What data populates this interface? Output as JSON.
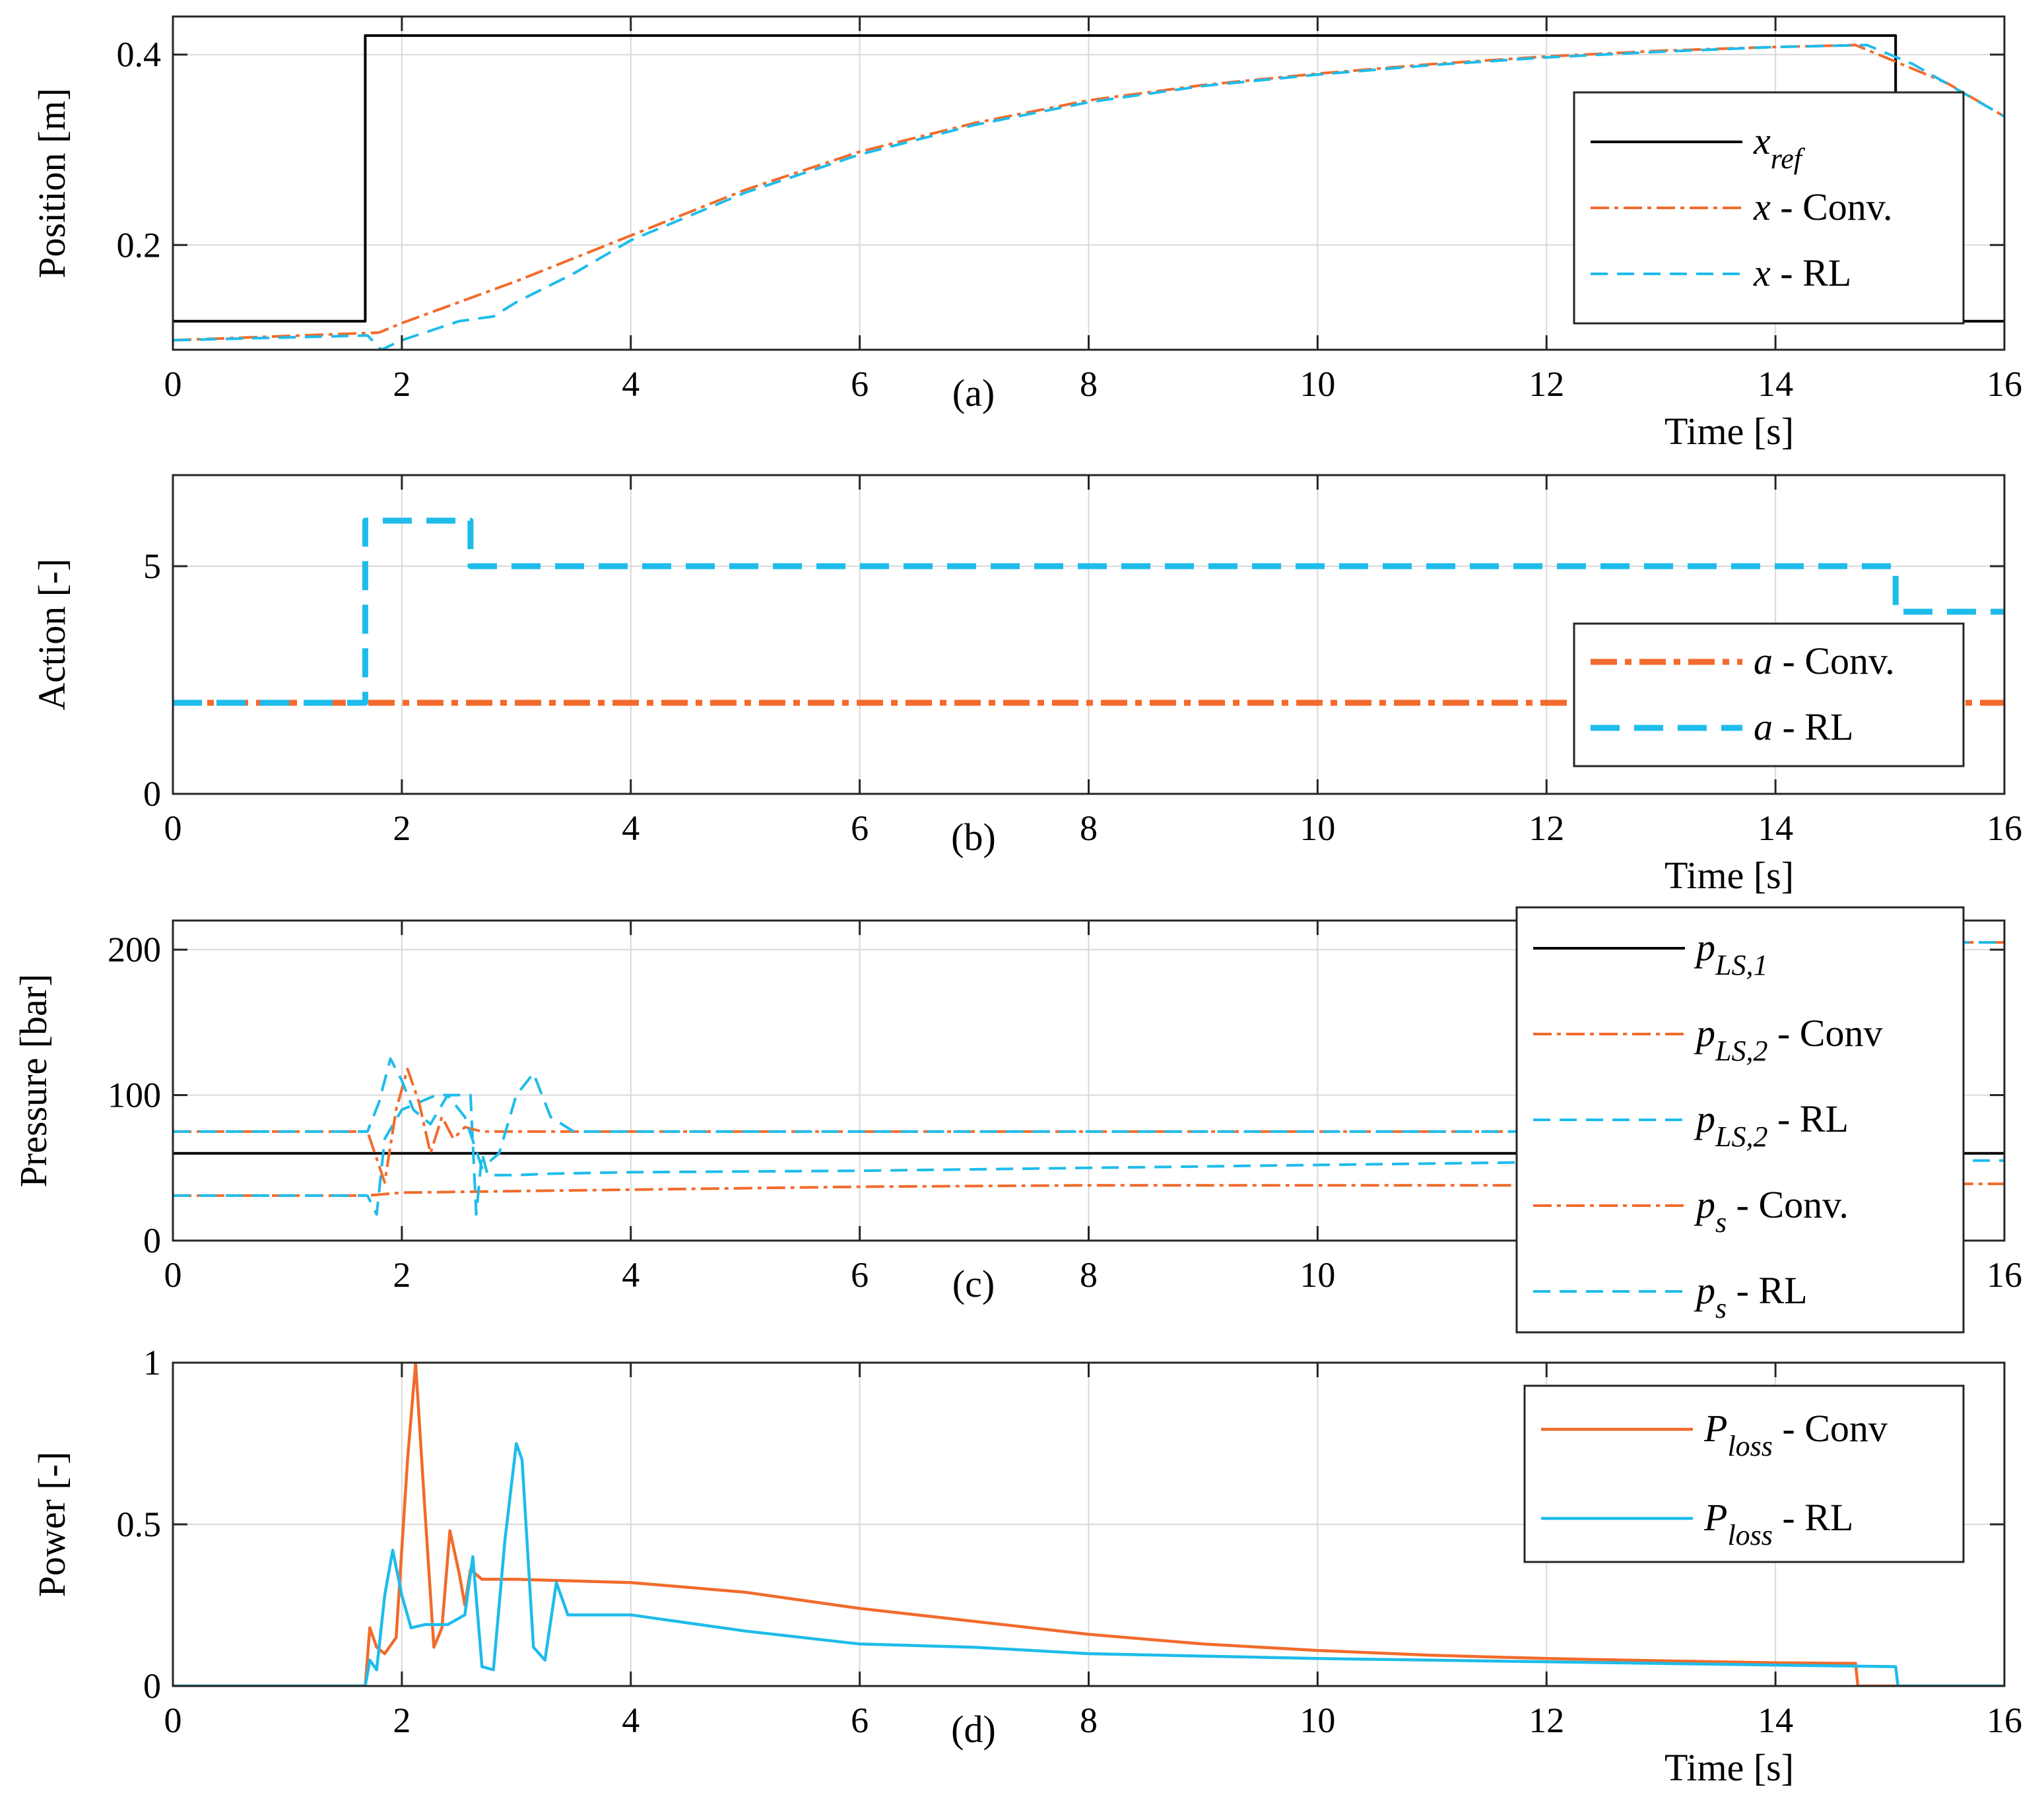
{
  "colors": {
    "conv": "#F26B2C",
    "rl": "#1EBCEB",
    "ref": "#000000",
    "grid": "#d9d9d9"
  },
  "chart_data": [
    {
      "type": "line",
      "panel": "(a)",
      "title": "",
      "xlabel": "Time [s]",
      "ylabel": "Position [m]",
      "xlim": [
        0,
        16
      ],
      "ylim": [
        0.09,
        0.44
      ],
      "xticks": [
        0,
        2,
        4,
        6,
        8,
        10,
        12,
        14,
        16
      ],
      "yticks": [
        0.2,
        0.4
      ],
      "ytick_labels": [
        "0.2",
        "0.4"
      ],
      "legend_loc": "right",
      "series": [
        {
          "name": "x_ref",
          "label_main": "x",
          "label_sub": "ref",
          "label_suffix": "",
          "style": "ref",
          "x": [
            0,
            1.68,
            1.68,
            15.05,
            15.05,
            16
          ],
          "y": [
            0.12,
            0.12,
            0.42,
            0.42,
            0.12,
            0.12
          ]
        },
        {
          "name": "x - Conv.",
          "label_main": "x",
          "label_sub": "",
          "label_suffix": " - Conv.",
          "style": "conv",
          "x": [
            0,
            1.8,
            2.0,
            2.5,
            3,
            4,
            5,
            6,
            7,
            8,
            9,
            10,
            11,
            12,
            13,
            14,
            14.7,
            15.0,
            15.5,
            16
          ],
          "y": [
            0.1,
            0.108,
            0.118,
            0.14,
            0.162,
            0.21,
            0.258,
            0.298,
            0.328,
            0.352,
            0.368,
            0.38,
            0.39,
            0.398,
            0.404,
            0.408,
            0.41,
            0.395,
            0.37,
            0.335
          ]
        },
        {
          "name": "x - RL",
          "label_main": "x",
          "label_sub": "",
          "label_suffix": " - RL",
          "style": "rl",
          "x": [
            0,
            1.7,
            1.82,
            2.0,
            2.5,
            2.8,
            3.0,
            3.5,
            4,
            5,
            6,
            7,
            8,
            9,
            10,
            11,
            12,
            13,
            14,
            14.8,
            15.2,
            16
          ],
          "y": [
            0.1,
            0.105,
            0.09,
            0.1,
            0.12,
            0.125,
            0.14,
            0.17,
            0.205,
            0.255,
            0.295,
            0.326,
            0.35,
            0.367,
            0.379,
            0.389,
            0.397,
            0.403,
            0.408,
            0.41,
            0.39,
            0.335
          ]
        }
      ]
    },
    {
      "type": "line",
      "panel": "(b)",
      "title": "",
      "xlabel": "Time [s]",
      "ylabel": "Action [-]",
      "xlim": [
        0,
        16
      ],
      "ylim": [
        0,
        7
      ],
      "xticks": [
        0,
        2,
        4,
        6,
        8,
        10,
        12,
        14,
        16
      ],
      "yticks": [
        0,
        5
      ],
      "ytick_labels": [
        "0",
        "5"
      ],
      "legend_loc": "lower right",
      "series": [
        {
          "name": "a - Conv.",
          "label_main": "a",
          "label_sub": "",
          "label_suffix": " - Conv.",
          "style": "conv-thick",
          "x": [
            0,
            16
          ],
          "y": [
            2,
            2
          ]
        },
        {
          "name": "a - RL",
          "label_main": "a",
          "label_sub": "",
          "label_suffix": " - RL",
          "style": "rl-thick",
          "x": [
            0,
            1.68,
            1.68,
            2.6,
            2.6,
            15.05,
            15.05,
            16
          ],
          "y": [
            2,
            2,
            6,
            6,
            5,
            5,
            4,
            4
          ]
        }
      ]
    },
    {
      "type": "line",
      "panel": "(c)",
      "title": "",
      "xlabel": "",
      "ylabel": "Pressure [bar]",
      "xlim": [
        0,
        16
      ],
      "ylim": [
        0,
        220
      ],
      "xticks": [
        0,
        2,
        4,
        6,
        8,
        10,
        12,
        14,
        16
      ],
      "yticks": [
        0,
        100,
        200
      ],
      "ytick_labels": [
        "0",
        "100",
        "200"
      ],
      "legend_loc": "right",
      "series": [
        {
          "name": "p_LS,1",
          "label_main": "p",
          "label_sub": "LS,1",
          "label_suffix": "",
          "style": "ref",
          "x": [
            0,
            16
          ],
          "y": [
            60,
            60
          ]
        },
        {
          "name": "p_LS,2 - Conv",
          "label_main": "p",
          "label_sub": "LS,2",
          "label_suffix": " - Conv",
          "style": "conv",
          "x": [
            0,
            1.7,
            2.0,
            3,
            4,
            6,
            8,
            10,
            12,
            14,
            16
          ],
          "y": [
            31,
            31,
            33,
            34,
            35,
            37,
            38,
            38,
            38,
            39,
            39
          ]
        },
        {
          "name": "p_LS,2 - RL",
          "label_main": "p",
          "label_sub": "LS,2",
          "label_suffix": " - RL",
          "style": "rl",
          "x": [
            0,
            1.7,
            1.78,
            1.85,
            2.0,
            2.3,
            2.6,
            2.65,
            2.7,
            2.75,
            3.0,
            3.3,
            4,
            6,
            8,
            10,
            12,
            14,
            16
          ],
          "y": [
            31,
            31,
            18,
            70,
            90,
            100,
            100,
            18,
            60,
            45,
            45,
            46,
            47,
            48,
            50,
            52,
            54,
            55,
            55
          ]
        },
        {
          "name": "p_s - Conv.",
          "label_main": "p",
          "label_sub": "s",
          "label_suffix": " - Conv.",
          "style": "conv",
          "x": [
            0,
            1.7,
            1.85,
            1.95,
            2.05,
            2.15,
            2.25,
            2.35,
            2.45,
            2.55,
            2.7,
            3.0,
            6,
            10,
            14,
            14.8,
            14.8,
            16
          ],
          "y": [
            75,
            75,
            40,
            90,
            118,
            95,
            60,
            85,
            70,
            78,
            75,
            75,
            75,
            75,
            75,
            75,
            205,
            205
          ]
        },
        {
          "name": "p_s - RL",
          "label_main": "p",
          "label_sub": "s",
          "label_suffix": " - RL",
          "style": "rl",
          "x": [
            0,
            1.7,
            1.8,
            1.9,
            2.0,
            2.1,
            2.25,
            2.4,
            2.55,
            2.7,
            2.85,
            3.0,
            3.15,
            3.3,
            3.5,
            6,
            10,
            14,
            15.05,
            15.05,
            16
          ],
          "y": [
            75,
            75,
            95,
            125,
            110,
            90,
            80,
            100,
            85,
            50,
            60,
            100,
            115,
            85,
            75,
            75,
            75,
            75,
            75,
            205,
            205
          ]
        }
      ]
    },
    {
      "type": "line",
      "panel": "(d)",
      "title": "",
      "xlabel": "Time [s]",
      "ylabel": "Power [-]",
      "xlim": [
        0,
        16
      ],
      "ylim": [
        0,
        1
      ],
      "xticks": [
        0,
        2,
        4,
        6,
        8,
        10,
        12,
        14,
        16
      ],
      "yticks": [
        0,
        0.5,
        1
      ],
      "ytick_labels": [
        "0",
        "0.5",
        "1"
      ],
      "legend_loc": "upper right",
      "series": [
        {
          "name": "P_loss - Conv",
          "label_main": "P",
          "label_sub": "loss",
          "label_suffix": " - Conv",
          "style": "conv-solid",
          "x": [
            0,
            1.68,
            1.72,
            1.78,
            1.85,
            1.95,
            2.05,
            2.12,
            2.2,
            2.28,
            2.35,
            2.42,
            2.5,
            2.55,
            2.6,
            2.7,
            3,
            4,
            5,
            6,
            7,
            8,
            9,
            10,
            11,
            12,
            13,
            14,
            14.7,
            14.72,
            16
          ],
          "y": [
            0,
            0,
            0.18,
            0.12,
            0.1,
            0.15,
            0.7,
            1.0,
            0.55,
            0.12,
            0.18,
            0.48,
            0.35,
            0.25,
            0.36,
            0.33,
            0.33,
            0.32,
            0.29,
            0.24,
            0.2,
            0.16,
            0.13,
            0.11,
            0.095,
            0.085,
            0.078,
            0.072,
            0.07,
            0.0,
            0.0
          ]
        },
        {
          "name": "P_loss - RL",
          "label_main": "P",
          "label_sub": "loss",
          "label_suffix": " - RL",
          "style": "rl-solid",
          "x": [
            0,
            1.68,
            1.72,
            1.78,
            1.85,
            1.92,
            2.0,
            2.08,
            2.2,
            2.4,
            2.55,
            2.62,
            2.7,
            2.8,
            2.9,
            3.0,
            3.05,
            3.15,
            3.25,
            3.35,
            3.45,
            4,
            5,
            6,
            7,
            8,
            10,
            12,
            14,
            15.05,
            15.07,
            16
          ],
          "y": [
            0,
            0,
            0.08,
            0.05,
            0.28,
            0.42,
            0.28,
            0.18,
            0.19,
            0.19,
            0.22,
            0.4,
            0.06,
            0.05,
            0.45,
            0.75,
            0.7,
            0.12,
            0.08,
            0.32,
            0.22,
            0.22,
            0.17,
            0.13,
            0.12,
            0.1,
            0.085,
            0.075,
            0.065,
            0.06,
            0.0,
            0.0
          ]
        }
      ]
    }
  ]
}
